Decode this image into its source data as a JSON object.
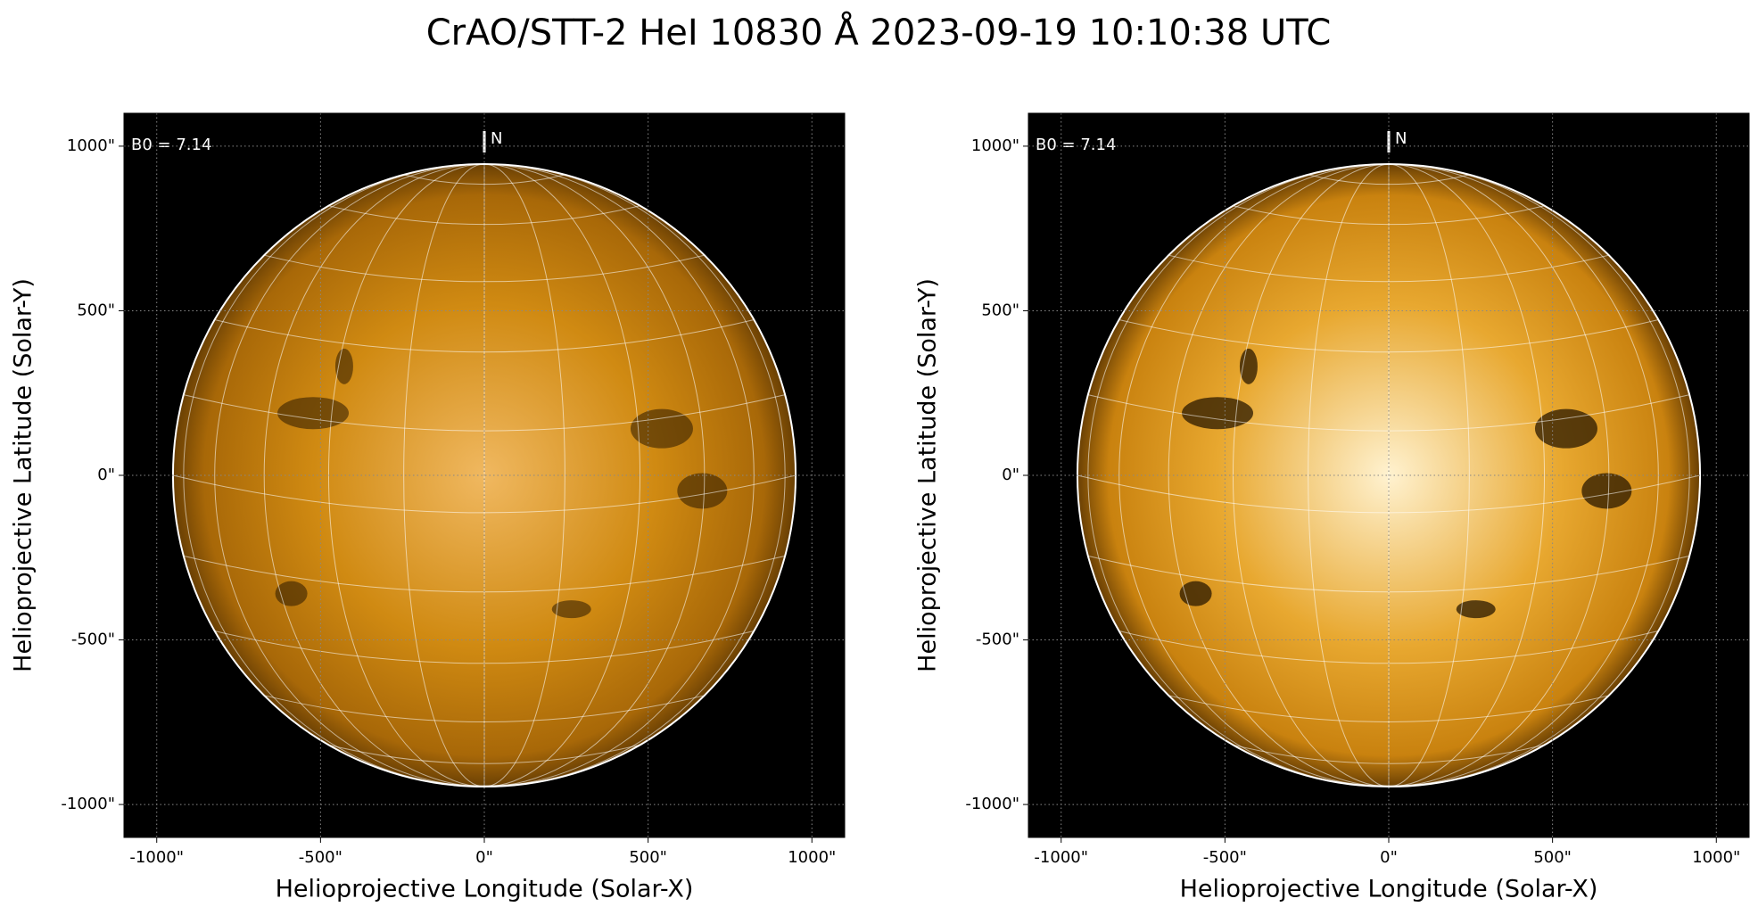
{
  "title": "CrAO/STT-2 HeI 10830 Å 2023-09-19 10:10:38 UTC",
  "chart_data": [
    {
      "type": "image",
      "annotation": "B0 = 7.14",
      "north_label": "N",
      "xlabel": "Helioprojective Longitude (Solar-X)",
      "ylabel": "Helioprojective Latitude (Solar-Y)",
      "xlim": [
        -1100,
        1100
      ],
      "ylim": [
        -1100,
        1100
      ],
      "xticks": [
        {
          "value": -1000,
          "label": "-1000\""
        },
        {
          "value": -500,
          "label": "-500\""
        },
        {
          "value": 0,
          "label": "0\""
        },
        {
          "value": 500,
          "label": "500\""
        },
        {
          "value": 1000,
          "label": "1000\""
        }
      ],
      "yticks": [
        {
          "value": -1000,
          "label": "-1000\""
        },
        {
          "value": -500,
          "label": "-500\""
        },
        {
          "value": 0,
          "label": "0\""
        },
        {
          "value": 500,
          "label": "500\""
        },
        {
          "value": 1000,
          "label": "1000\""
        }
      ],
      "grid": true,
      "color": "#d08a12"
    },
    {
      "type": "image",
      "annotation": "B0 = 7.14",
      "north_label": "N",
      "xlabel": "Helioprojective Longitude (Solar-X)",
      "ylabel": "Helioprojective Latitude (Solar-Y)",
      "xlim": [
        -1100,
        1100
      ],
      "ylim": [
        -1100,
        1100
      ],
      "xticks": [
        {
          "value": -1000,
          "label": "-1000\""
        },
        {
          "value": -500,
          "label": "-500\""
        },
        {
          "value": 0,
          "label": "0\""
        },
        {
          "value": 500,
          "label": "500\""
        },
        {
          "value": 1000,
          "label": "1000\""
        }
      ],
      "yticks": [
        {
          "value": -1000,
          "label": "-1000\""
        },
        {
          "value": -500,
          "label": "-500\""
        },
        {
          "value": 0,
          "label": "0\""
        },
        {
          "value": 500,
          "label": "500\""
        },
        {
          "value": 1000,
          "label": "1000\""
        }
      ],
      "grid": true,
      "color": "#e8a830"
    }
  ]
}
